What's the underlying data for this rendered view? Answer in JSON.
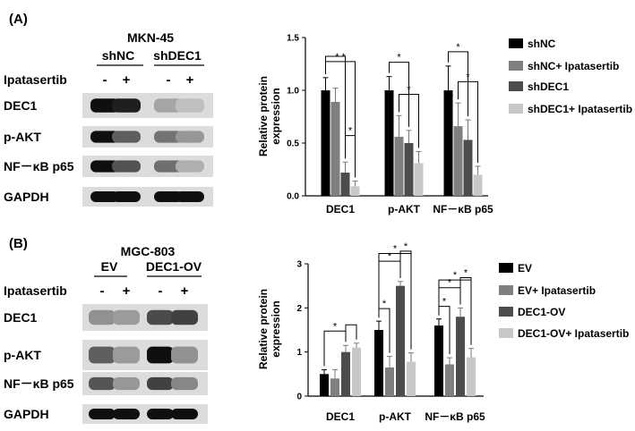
{
  "panels": [
    {
      "label": "(A)",
      "blot": {
        "cell_line": "MKN-45",
        "groups": [
          "shNC",
          "shDEC1"
        ],
        "treatment_label": "Ipatasertib",
        "lanes": [
          "-",
          "+",
          "-",
          "+"
        ],
        "rows": [
          {
            "label": "DEC1",
            "intensity": [
              1.0,
              0.92,
              0.25,
              0.12
            ]
          },
          {
            "label": "p-AKT",
            "intensity": [
              1.0,
              0.6,
              0.5,
              0.32
            ]
          },
          {
            "label": "NF－κB p65",
            "intensity": [
              1.0,
              0.66,
              0.52,
              0.2
            ]
          },
          {
            "label": "GAPDH",
            "intensity": [
              1.0,
              1.0,
              1.0,
              1.0
            ]
          }
        ]
      }
    },
    {
      "label": "(B)",
      "blot": {
        "cell_line": "MGC-803",
        "groups": [
          "EV",
          "DEC1-OV"
        ],
        "treatment_label": "Ipatasertib",
        "lanes": [
          "-",
          "+",
          "-",
          "+"
        ],
        "rows": [
          {
            "label": "DEC1",
            "intensity": [
              0.35,
              0.3,
              0.7,
              0.75
            ]
          },
          {
            "label": "p-AKT",
            "intensity": [
              0.6,
              0.3,
              1.0,
              0.35
            ]
          },
          {
            "label": "NF－κB p65",
            "intensity": [
              0.65,
              0.32,
              0.75,
              0.4
            ]
          },
          {
            "label": "GAPDH",
            "intensity": [
              1.0,
              1.0,
              1.0,
              1.0
            ]
          }
        ]
      }
    }
  ],
  "chart_data": [
    {
      "type": "bar",
      "title": "",
      "xlabel": "",
      "ylabel": "Relative protein expression",
      "categories": [
        "DEC1",
        "p-AKT",
        "NF－κB p65"
      ],
      "ylim": [
        0,
        1.5
      ],
      "yticks": [
        0.0,
        0.5,
        1.0,
        1.5
      ],
      "tick_labels": [
        "0.0",
        "0.5",
        "1.0",
        "1.5"
      ],
      "legend_position": "right",
      "series": [
        {
          "name": "shNC",
          "color": "#000000",
          "values": [
            1.0,
            1.0,
            1.0
          ],
          "errors": [
            0.12,
            0.13,
            0.23
          ]
        },
        {
          "name": "shNC+ Ipatasertib",
          "color": "#7f7f7f",
          "values": [
            0.89,
            0.56,
            0.66
          ],
          "errors": [
            0.13,
            0.2,
            0.22
          ]
        },
        {
          "name": "shDEC1",
          "color": "#4c4c4c",
          "values": [
            0.22,
            0.5,
            0.53
          ],
          "errors": [
            0.1,
            0.12,
            0.19
          ]
        },
        {
          "name": "shDEC1+ Ipatasertib",
          "color": "#c8c8c8",
          "values": [
            0.09,
            0.31,
            0.2
          ],
          "errors": [
            0.05,
            0.11,
            0.08
          ]
        }
      ],
      "significance": [
        {
          "category": 0,
          "from": 0,
          "to": 3,
          "label": "* *"
        },
        {
          "category": 0,
          "from": 0,
          "to": 2,
          "label": ""
        },
        {
          "category": 0,
          "from": 2,
          "to": 3,
          "label": "*"
        },
        {
          "category": 1,
          "from": 0,
          "to": 2,
          "label": "*"
        },
        {
          "category": 1,
          "from": 1,
          "to": 3,
          "label": "*"
        },
        {
          "category": 2,
          "from": 0,
          "to": 2,
          "label": "*"
        },
        {
          "category": 2,
          "from": 1,
          "to": 3,
          "label": "*"
        }
      ]
    },
    {
      "type": "bar",
      "title": "",
      "xlabel": "",
      "ylabel": "Relative protein expression",
      "categories": [
        "DEC1",
        "p-AKT",
        "NF－κB p65"
      ],
      "ylim": [
        0,
        3
      ],
      "yticks": [
        0,
        1,
        2,
        3
      ],
      "tick_labels": [
        "0",
        "1",
        "2",
        "3"
      ],
      "legend_position": "right",
      "series": [
        {
          "name": "EV",
          "color": "#000000",
          "values": [
            0.5,
            1.5,
            1.6
          ],
          "errors": [
            0.1,
            0.2,
            0.15
          ]
        },
        {
          "name": "EV+ Ipatasertib",
          "color": "#7f7f7f",
          "values": [
            0.4,
            0.65,
            0.72
          ],
          "errors": [
            0.2,
            0.25,
            0.15
          ]
        },
        {
          "name": "DEC1-OV",
          "color": "#4c4c4c",
          "values": [
            1.0,
            2.5,
            1.8
          ],
          "errors": [
            0.15,
            0.1,
            0.2
          ]
        },
        {
          "name": "DEC1-OV+ Ipatasertib",
          "color": "#c8c8c8",
          "values": [
            1.1,
            0.78,
            0.88
          ],
          "errors": [
            0.1,
            0.2,
            0.2
          ]
        }
      ],
      "significance": [
        {
          "category": 0,
          "from": 0,
          "to": 2,
          "label": "*"
        },
        {
          "category": 0,
          "from": 2,
          "to": 3,
          "label": ""
        },
        {
          "category": 1,
          "from": 0,
          "to": 1,
          "label": "*"
        },
        {
          "category": 1,
          "from": 0,
          "to": 2,
          "label": "*"
        },
        {
          "category": 1,
          "from": 0,
          "to": 3,
          "label": "*"
        },
        {
          "category": 1,
          "from": 2,
          "to": 3,
          "label": "*"
        },
        {
          "category": 2,
          "from": 0,
          "to": 1,
          "label": "*"
        },
        {
          "category": 2,
          "from": 0,
          "to": 2,
          "label": "*"
        },
        {
          "category": 2,
          "from": 0,
          "to": 3,
          "label": "*"
        },
        {
          "category": 2,
          "from": 2,
          "to": 3,
          "label": "*"
        }
      ]
    }
  ]
}
